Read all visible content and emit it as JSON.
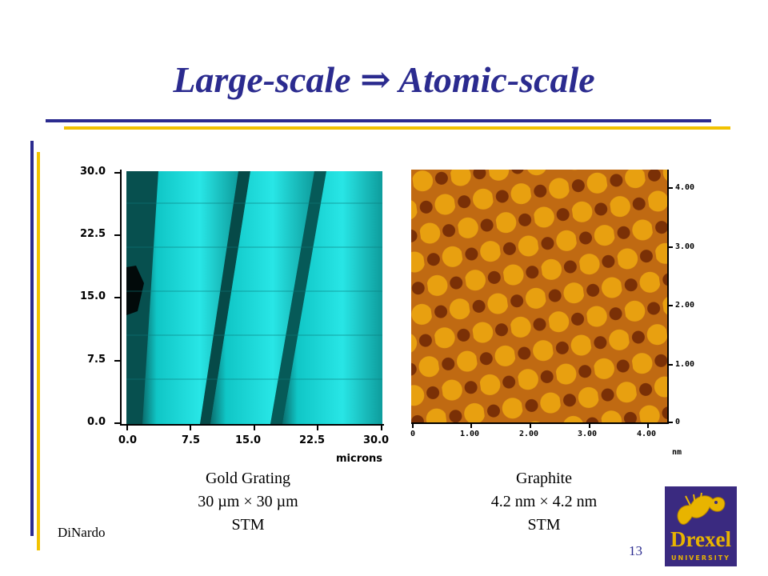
{
  "slide": {
    "title": "Large-scale ⇒ Atomic-scale",
    "author": "DiNardo",
    "page_number": "13"
  },
  "left_image": {
    "y_ticks": [
      "30.0",
      "22.5",
      "15.0",
      "7.5",
      "0.0"
    ],
    "x_ticks": [
      "0.0",
      "7.5",
      "15.0",
      "22.5",
      "30.0"
    ],
    "x_unit": "microns",
    "caption": [
      "Gold Grating",
      "30 µm × 30 µm",
      "STM"
    ]
  },
  "right_image": {
    "y_ticks": [
      "4.00",
      "3.00",
      "2.00",
      "1.00",
      "0"
    ],
    "x_ticks": [
      "0",
      "1.00",
      "2.00",
      "3.00",
      "4.00"
    ],
    "x_unit": "nm",
    "caption": [
      "Graphite",
      "4.2 nm × 4.2 nm",
      "STM"
    ]
  },
  "logo": {
    "word": "Drexel",
    "subtitle": "UNIVERSITY"
  },
  "colors": {
    "title": "#2b2b8f",
    "accent_gold": "#f2c200",
    "gold_stm": "#00e0e0",
    "graphite": "#b05a10"
  }
}
